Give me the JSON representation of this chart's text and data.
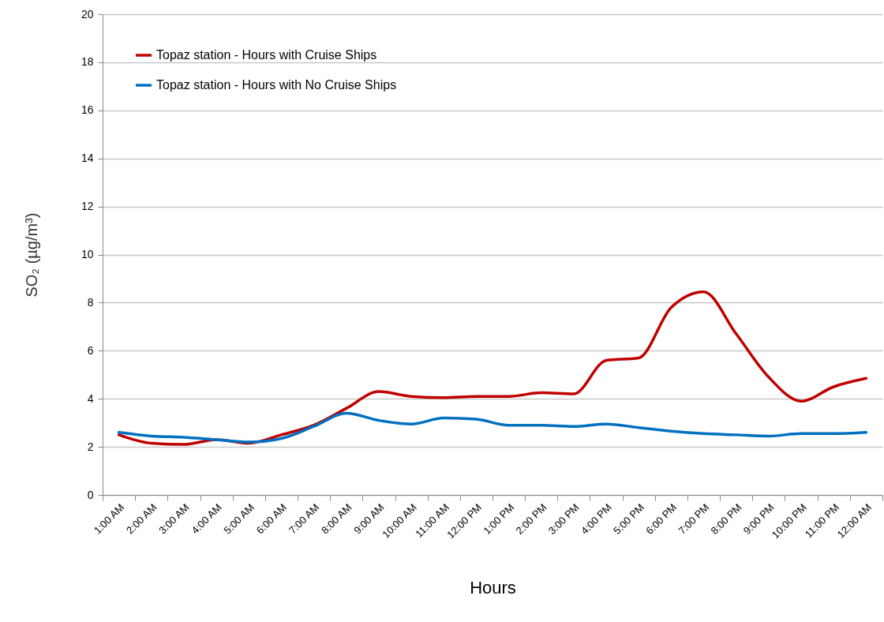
{
  "chart_data": {
    "type": "line",
    "xlabel": "Hours",
    "ylabel": "SO₂ (µg/m³)",
    "categories": [
      "1:00 AM",
      "2:00 AM",
      "3:00 AM",
      "4:00 AM",
      "5:00 AM",
      "6:00 AM",
      "7:00 AM",
      "8:00 AM",
      "9:00 AM",
      "10:00 AM",
      "11:00 AM",
      "12:00 PM",
      "1:00 PM",
      "2:00 PM",
      "3:00 PM",
      "4:00 PM",
      "5:00 PM",
      "6:00 PM",
      "7:00 PM",
      "8:00 PM",
      "9:00 PM",
      "10:00 PM",
      "11:00 PM",
      "12:00 AM"
    ],
    "series": [
      {
        "name": "Topaz station - Hours with Cruise Ships",
        "color": "#c00000",
        "values": [
          2.5,
          2.15,
          2.1,
          2.3,
          2.15,
          2.5,
          2.9,
          3.6,
          4.3,
          4.1,
          4.05,
          4.1,
          4.1,
          4.25,
          4.2,
          5.6,
          5.7,
          7.8,
          8.45,
          6.7,
          4.9,
          3.9,
          4.5,
          4.85
        ]
      },
      {
        "name": "Topaz station - Hours with No Cruise Ships",
        "color": "#0070c0",
        "values": [
          2.6,
          2.45,
          2.4,
          2.3,
          2.2,
          2.35,
          2.85,
          3.4,
          3.1,
          2.95,
          3.2,
          3.15,
          2.9,
          2.9,
          2.85,
          2.95,
          2.8,
          2.65,
          2.55,
          2.5,
          2.45,
          2.55,
          2.55,
          2.6
        ]
      }
    ],
    "ylim": [
      0,
      20
    ],
    "yticks": [
      0,
      2,
      4,
      6,
      8,
      10,
      12,
      14,
      16,
      18,
      20
    ],
    "grid": "y",
    "legend": "top left",
    "marker": "none",
    "line_style": "solid"
  }
}
